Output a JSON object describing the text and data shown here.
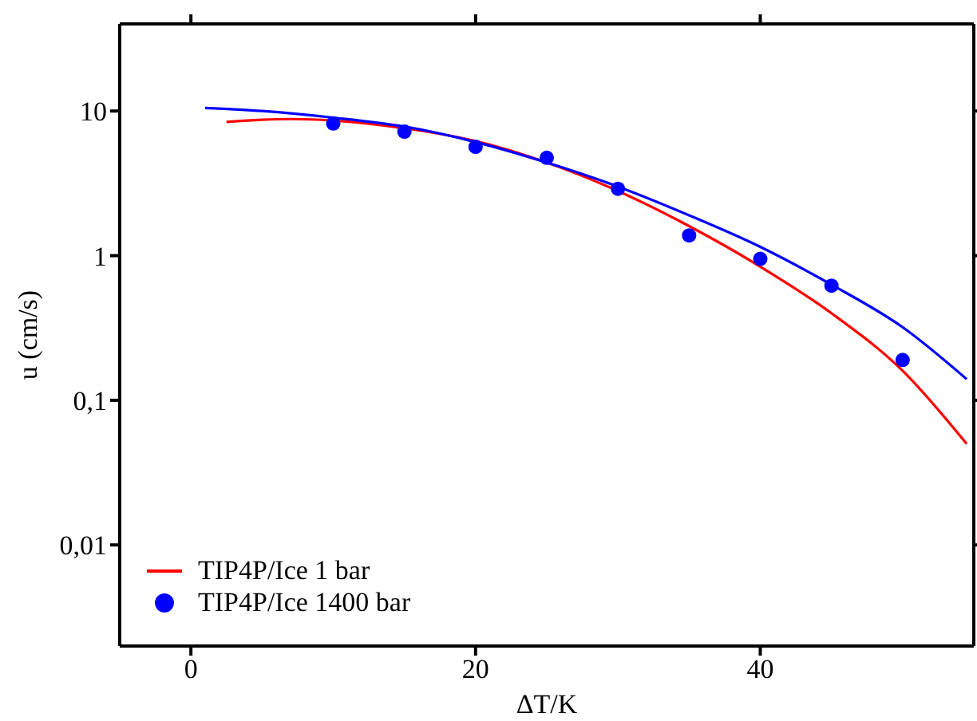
{
  "chart_data": {
    "type": "line",
    "xlabel": "ΔT/K",
    "ylabel": "u (cm/s)",
    "log": "y",
    "xlim": [
      -5,
      55
    ],
    "xticks": [
      0,
      20,
      40
    ],
    "ylim": [
      0.002,
      40
    ],
    "yticks": [
      {
        "value": 0.01,
        "label": "0,01"
      },
      {
        "value": 0.1,
        "label": "0,1"
      },
      1,
      10
    ],
    "legend": "bottom left",
    "series": [
      {
        "name": "TIP4P/Ice 1 bar",
        "color": "#ff0000",
        "x": [
          2.5,
          5,
          7,
          10,
          15,
          20,
          25,
          30,
          35,
          40,
          45,
          50,
          54.5
        ],
        "values": [
          8.4,
          8.7,
          8.8,
          8.6,
          7.6,
          6.2,
          4.4,
          2.8,
          1.6,
          0.84,
          0.4,
          0.16,
          0.05
        ]
      },
      {
        "color": "#0000ff",
        "x": [
          1,
          5,
          10,
          15,
          20,
          25,
          30,
          35,
          40,
          45,
          50,
          54.5
        ],
        "values": [
          10.5,
          10,
          9.0,
          7.8,
          6.1,
          4.4,
          3.0,
          1.9,
          1.15,
          0.63,
          0.32,
          0.14
        ]
      },
      {
        "name": "TIP4P/Ice 1400 bar",
        "type": "scatter",
        "marker": "circle",
        "color": "#0000ff",
        "x": [
          10,
          15,
          20,
          25,
          30,
          35,
          40,
          45,
          50
        ],
        "values": [
          8.2,
          7.2,
          5.65,
          4.75,
          2.9,
          1.38,
          0.95,
          0.62,
          0.19
        ]
      }
    ]
  }
}
